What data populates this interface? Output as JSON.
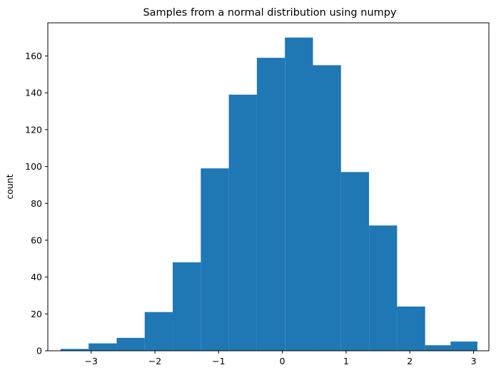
{
  "chart_data": {
    "type": "bar",
    "title": "Samples from a normal distribution using numpy",
    "xlabel": "",
    "ylabel": "count",
    "xlim": [
      -3.68,
      3.24
    ],
    "ylim": [
      0,
      178
    ],
    "grid": false,
    "color": "#1f77b4",
    "bin_edges": [
      -3.48,
      -3.04,
      -2.6,
      -2.16,
      -1.72,
      -1.28,
      -0.84,
      -0.4,
      0.04,
      0.48,
      0.92,
      1.36,
      1.8,
      2.24,
      2.64,
      3.06
    ],
    "counts": [
      1,
      4,
      7,
      21,
      48,
      99,
      139,
      159,
      170,
      155,
      97,
      68,
      24,
      3,
      5
    ],
    "x_ticks": [
      -3,
      -2,
      -1,
      0,
      1,
      2,
      3
    ],
    "x_tick_labels": [
      "−3",
      "−2",
      "−1",
      "0",
      "1",
      "2",
      "3"
    ],
    "y_ticks": [
      0,
      20,
      40,
      60,
      80,
      100,
      120,
      140,
      160
    ],
    "y_tick_labels": [
      "0",
      "20",
      "40",
      "60",
      "80",
      "100",
      "120",
      "140",
      "160"
    ]
  }
}
